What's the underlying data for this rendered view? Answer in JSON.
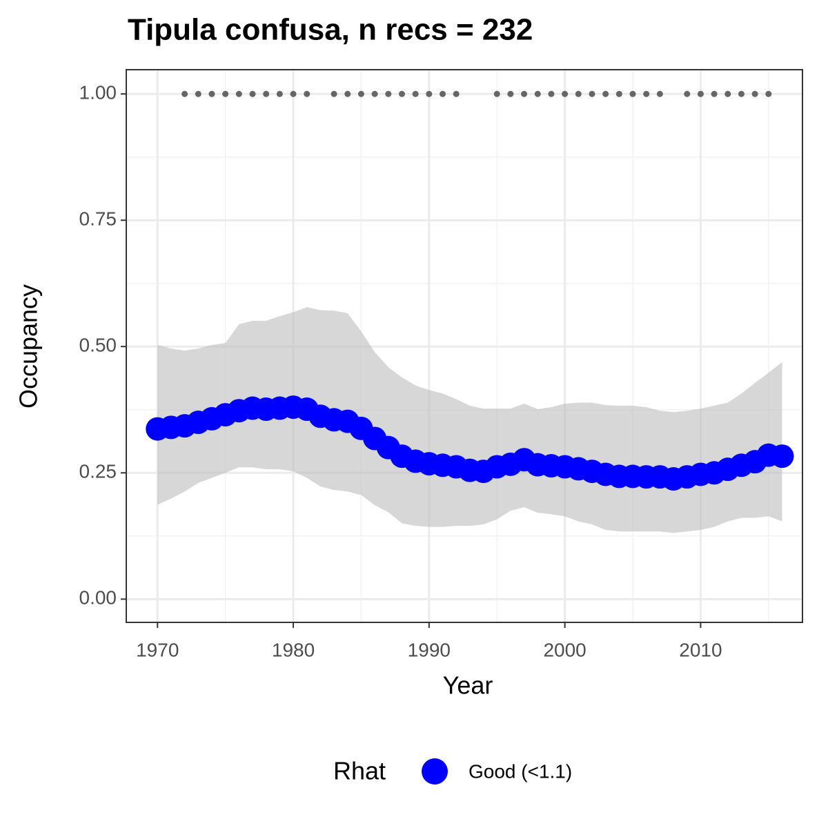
{
  "chart_data": {
    "type": "line",
    "title": "Tipula confusa, n recs = 232",
    "x_label": "Year",
    "y_label": "Occupancy",
    "legend_title": "Rhat",
    "legend_position": "bottom",
    "xlim": [
      1967.7,
      2017.5
    ],
    "ylim": [
      -0.046,
      1.048
    ],
    "xticks": [
      1970,
      1980,
      1990,
      2000,
      2010
    ],
    "minor_xticks": [
      1975,
      1985,
      1995,
      2005,
      2015
    ],
    "yticks": [
      {
        "value": 0,
        "label": "0.00"
      },
      {
        "value": 0.25,
        "label": "0.25"
      },
      {
        "value": 0.5,
        "label": "0.50"
      },
      {
        "value": 0.75,
        "label": "0.75"
      },
      {
        "value": 1,
        "label": "1.00"
      }
    ],
    "minor_yticks": [
      0.125,
      0.375,
      0.625,
      0.875
    ],
    "grid": true,
    "band_color": "#bdbdbd",
    "x": [
      1970,
      1971,
      1972,
      1973,
      1974,
      1975,
      1976,
      1977,
      1978,
      1979,
      1980,
      1981,
      1982,
      1983,
      1984,
      1985,
      1986,
      1987,
      1988,
      1989,
      1990,
      1991,
      1992,
      1993,
      1994,
      1995,
      1996,
      1997,
      1998,
      1999,
      2000,
      2001,
      2002,
      2003,
      2004,
      2005,
      2006,
      2007,
      2008,
      2009,
      2010,
      2011,
      2012,
      2013,
      2014,
      2015,
      2016
    ],
    "series": [
      {
        "name": "Good (<1.1)",
        "color": "#0000ff",
        "values": [
          0.337,
          0.34,
          0.343,
          0.35,
          0.357,
          0.365,
          0.373,
          0.378,
          0.376,
          0.378,
          0.38,
          0.376,
          0.362,
          0.355,
          0.352,
          0.338,
          0.318,
          0.3,
          0.283,
          0.273,
          0.268,
          0.265,
          0.262,
          0.255,
          0.253,
          0.262,
          0.267,
          0.276,
          0.266,
          0.264,
          0.262,
          0.258,
          0.253,
          0.247,
          0.243,
          0.243,
          0.242,
          0.242,
          0.238,
          0.242,
          0.247,
          0.25,
          0.257,
          0.265,
          0.272,
          0.285,
          0.283
        ],
        "upper": [
          0.503,
          0.496,
          0.492,
          0.496,
          0.503,
          0.507,
          0.544,
          0.551,
          0.551,
          0.56,
          0.568,
          0.578,
          0.572,
          0.571,
          0.566,
          0.53,
          0.489,
          0.459,
          0.439,
          0.423,
          0.414,
          0.407,
          0.396,
          0.383,
          0.377,
          0.377,
          0.377,
          0.387,
          0.376,
          0.38,
          0.387,
          0.389,
          0.389,
          0.384,
          0.383,
          0.383,
          0.38,
          0.373,
          0.37,
          0.373,
          0.377,
          0.383,
          0.389,
          0.407,
          0.428,
          0.448,
          0.469
        ],
        "lower": [
          0.187,
          0.199,
          0.213,
          0.23,
          0.24,
          0.25,
          0.261,
          0.261,
          0.257,
          0.257,
          0.253,
          0.24,
          0.223,
          0.216,
          0.213,
          0.206,
          0.186,
          0.172,
          0.15,
          0.145,
          0.143,
          0.143,
          0.145,
          0.145,
          0.148,
          0.158,
          0.175,
          0.182,
          0.171,
          0.168,
          0.164,
          0.154,
          0.148,
          0.137,
          0.134,
          0.134,
          0.134,
          0.134,
          0.131,
          0.134,
          0.137,
          0.143,
          0.154,
          0.161,
          0.161,
          0.164,
          0.154
        ]
      }
    ],
    "records": {
      "color": "#666666",
      "x": [
        1972,
        1973,
        1974,
        1975,
        1976,
        1977,
        1978,
        1979,
        1980,
        1981,
        1983,
        1984,
        1985,
        1986,
        1987,
        1988,
        1989,
        1990,
        1991,
        1992,
        1995,
        1996,
        1997,
        1998,
        1999,
        2000,
        2001,
        2002,
        2003,
        2004,
        2005,
        2006,
        2007,
        2009,
        2010,
        2011,
        2012,
        2013,
        2014,
        2015
      ],
      "values": [
        1,
        1,
        1,
        1,
        1,
        1,
        1,
        1,
        1,
        1,
        1,
        1,
        1,
        1,
        1,
        1,
        1,
        1,
        1,
        1,
        1,
        1,
        1,
        1,
        1,
        1,
        1,
        1,
        1,
        1,
        1,
        1,
        1,
        1,
        1,
        1,
        1,
        1,
        1,
        1
      ]
    }
  }
}
